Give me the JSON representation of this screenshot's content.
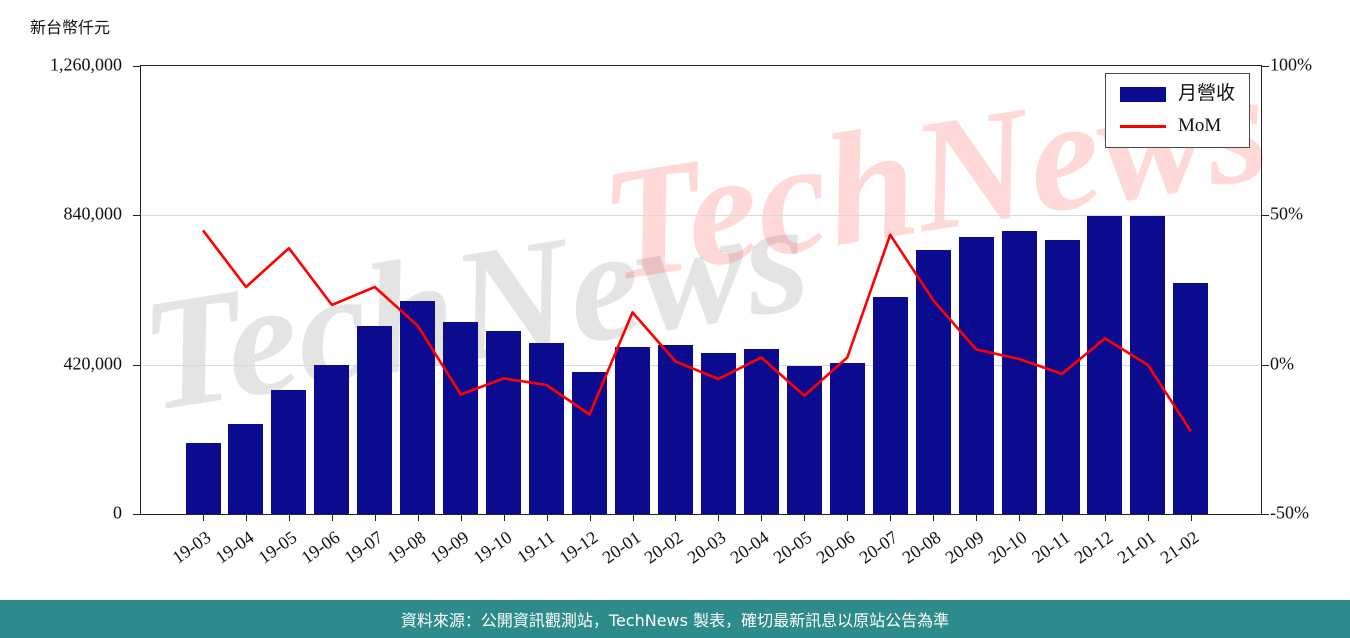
{
  "axis_title": "新台幣仟元",
  "chart_data": {
    "type": "bar",
    "title": "",
    "categories": [
      "19-03",
      "19-04",
      "19-05",
      "19-06",
      "19-07",
      "19-08",
      "19-09",
      "19-10",
      "19-11",
      "19-12",
      "20-01",
      "20-02",
      "20-03",
      "20-04",
      "20-05",
      "20-06",
      "20-07",
      "20-08",
      "20-09",
      "20-10",
      "20-11",
      "20-12",
      "21-01",
      "21-02"
    ],
    "series": [
      {
        "name": "月營收",
        "type": "bar",
        "axis": "left",
        "color": "#0b0b8f",
        "values": [
          200000,
          252000,
          350000,
          420000,
          530000,
          600000,
          540000,
          515000,
          480000,
          400000,
          470000,
          475000,
          452000,
          463000,
          415000,
          425000,
          610000,
          742000,
          780000,
          795000,
          770000,
          838000,
          837000,
          650000
        ]
      },
      {
        "name": "MoM",
        "type": "line",
        "axis": "right",
        "color": "#ff0000",
        "values": [
          45,
          26,
          39,
          20,
          26,
          13,
          -10,
          -4.6,
          -6.8,
          -16.7,
          17.5,
          1.1,
          -4.8,
          2.4,
          -10.4,
          2.4,
          43.5,
          21.6,
          5.1,
          1.9,
          -3.1,
          8.8,
          -0.1,
          -22.3
        ]
      }
    ],
    "left_axis": {
      "title": "新台幣仟元",
      "ticks": [
        "1,260,000",
        "840,000",
        "420,000",
        "0"
      ],
      "min": 0,
      "max": 1260000
    },
    "right_axis": {
      "ticks": [
        "100%",
        "50%",
        "0%",
        "-50%"
      ],
      "min": -50,
      "max": 100,
      "gridline_values": [
        50,
        0
      ]
    },
    "legend": {
      "position": "upper-right",
      "entries": [
        "月營收",
        "MoM"
      ]
    },
    "grid": "horizontal",
    "watermark": {
      "text": "TechNews",
      "front_color": "#ff0000",
      "back_color": "#8a8a8a"
    }
  },
  "footer": {
    "text": "資料來源：公開資訊觀測站，TechNews 製表，確切最新訊息以原站公告為準",
    "background": "#2e8b8b",
    "text_color": "#ffffff"
  }
}
